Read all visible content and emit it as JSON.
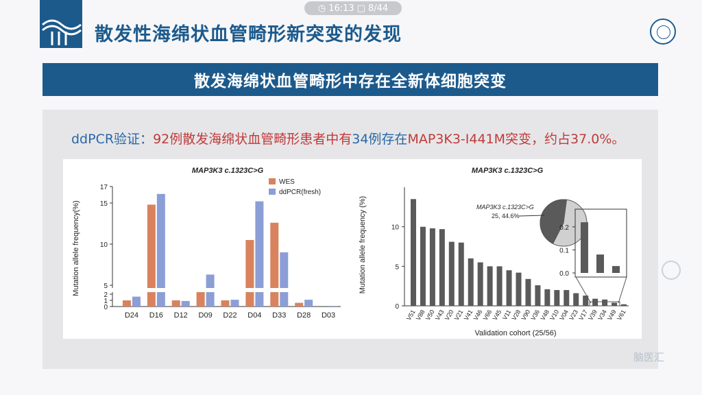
{
  "header": {
    "title": "散发性海绵状血管畸形新突变的发现",
    "timer": "16:13",
    "page_counter": "8/44"
  },
  "banner": {
    "text": "散发海绵状血管畸形中存在全新体细胞突变"
  },
  "statement": {
    "prefix": "ddPCR验证：",
    "p1": "92例散发海绵状血管畸形患者中有",
    "count": "34例存在",
    "gene": "MAP3K3-I441M",
    "p2": "突变，约占37.0%。"
  },
  "chart_data": [
    {
      "type": "bar",
      "title": "MAP3K3 c.1323C>G",
      "ylabel": "Mutation allele frequency(%)",
      "categories": [
        "D24",
        "D16",
        "D12",
        "D09",
        "D22",
        "D04",
        "D33",
        "D28",
        "D03"
      ],
      "series": [
        {
          "name": "WES",
          "color": "#d9825e",
          "values": [
            1.0,
            14.8,
            1.0,
            4.3,
            1.0,
            10.5,
            12.6,
            0.6,
            0.0
          ]
        },
        {
          "name": "ddPCR(fresh)",
          "color": "#8b9ed6",
          "values": [
            1.6,
            16.1,
            0.9,
            6.3,
            1.1,
            15.2,
            9.0,
            1.1,
            0.1
          ]
        }
      ],
      "yticks": [
        0,
        1,
        2,
        5,
        10,
        15,
        17
      ],
      "legend": "top-right"
    },
    {
      "type": "bar",
      "title": "MAP3K3 c.1323C>G",
      "xlabel": "Validation cohort (25/56)",
      "ylabel": "Mutation allele frequency (%)",
      "categories": [
        "V51",
        "V88",
        "V50",
        "V43",
        "V20",
        "V21",
        "V41",
        "V46",
        "V66",
        "V45",
        "V11",
        "V28",
        "V90",
        "V36",
        "V48",
        "V10",
        "V04",
        "V23",
        "V17",
        "V39",
        "V34",
        "V49",
        "V61"
      ],
      "values": [
        13.5,
        10.0,
        9.8,
        9.7,
        8.1,
        8.0,
        6.0,
        5.5,
        5.0,
        5.0,
        4.5,
        4.2,
        3.4,
        2.6,
        2.1,
        2.0,
        2.0,
        1.6,
        1.3,
        0.9,
        0.8,
        0.4,
        0.2
      ],
      "ylim": [
        0,
        15
      ],
      "yticks": [
        0,
        5,
        10
      ],
      "pie": {
        "label": "MAP3K3 c.1323C>G",
        "value_text": "25, 44.6%",
        "fraction": 0.446
      },
      "inset": {
        "values": [
          0.22,
          0.08,
          0.03
        ],
        "yticks": [
          "0.0",
          "0.1",
          "0.2"
        ]
      }
    }
  ],
  "watermark": "脑医汇"
}
